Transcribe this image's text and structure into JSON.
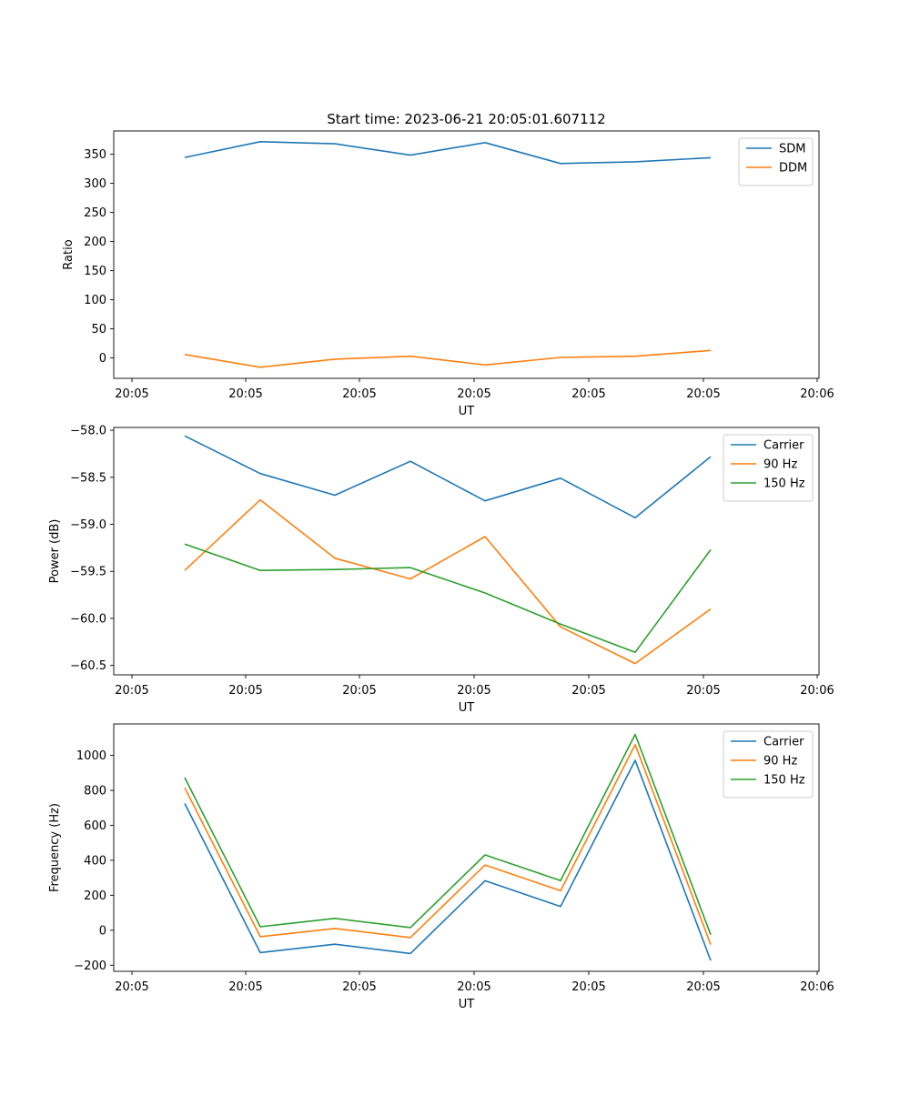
{
  "figure": {
    "title": "Start time: 2023-06-21 20:05:01.607112"
  },
  "colors": {
    "blue": "#1f77b4",
    "orange": "#ff7f0e",
    "green": "#2ca02c"
  },
  "chart_data": [
    {
      "type": "line",
      "title": "Start time: 2023-06-21 20:05:01.607112",
      "xlabel": "UT",
      "ylabel": "Ratio",
      "x": [
        "20:05",
        "20:05",
        "20:05",
        "20:05",
        "20:05",
        "20:05",
        "20:05",
        "20:05"
      ],
      "xticks": [
        "20:05",
        "20:05",
        "20:05",
        "20:05",
        "20:05",
        "20:05",
        "20:06"
      ],
      "ylim": [
        -35,
        390
      ],
      "yticks": [
        0,
        50,
        100,
        150,
        200,
        250,
        300,
        350
      ],
      "legend": "top-right",
      "grid": false,
      "series": [
        {
          "name": "SDM",
          "color": "#1f77b4",
          "values": [
            344.5,
            371.5,
            368,
            348.5,
            370,
            334,
            337,
            344
          ]
        },
        {
          "name": "DDM",
          "color": "#ff7f0e",
          "values": [
            6,
            -16,
            -2,
            3,
            -12,
            1,
            3,
            13
          ]
        }
      ]
    },
    {
      "type": "line",
      "xlabel": "UT",
      "ylabel": "Power (dB)",
      "x": [
        "20:05",
        "20:05",
        "20:05",
        "20:05",
        "20:05",
        "20:05",
        "20:05",
        "20:05"
      ],
      "xticks": [
        "20:05",
        "20:05",
        "20:05",
        "20:05",
        "20:05",
        "20:05",
        "20:06"
      ],
      "ylim": [
        -60.6,
        -57.97
      ],
      "yticks": [
        -58.0,
        -58.5,
        -59.0,
        -59.5,
        -60.0,
        -60.5
      ],
      "ytick_labels": [
        "−58.0",
        "−58.5",
        "−59.0",
        "−59.5",
        "−60.0",
        "−60.5"
      ],
      "legend": "top-right",
      "grid": false,
      "series": [
        {
          "name": "Carrier",
          "color": "#1f77b4",
          "values": [
            -58.06,
            -58.46,
            -58.69,
            -58.33,
            -58.75,
            -58.51,
            -58.93,
            -58.28
          ]
        },
        {
          "name": "90 Hz",
          "color": "#ff7f0e",
          "values": [
            -59.49,
            -58.74,
            -59.36,
            -59.58,
            -59.13,
            -60.09,
            -60.48,
            -59.9
          ]
        },
        {
          "name": "150 Hz",
          "color": "#2ca02c",
          "values": [
            -59.21,
            -59.49,
            -59.48,
            -59.46,
            -59.73,
            -60.06,
            -60.36,
            -59.27
          ]
        }
      ]
    },
    {
      "type": "line",
      "xlabel": "UT",
      "ylabel": "Frequency (Hz)",
      "x": [
        "20:05",
        "20:05",
        "20:05",
        "20:05",
        "20:05",
        "20:05",
        "20:05",
        "20:05"
      ],
      "xticks": [
        "20:05",
        "20:05",
        "20:05",
        "20:05",
        "20:05",
        "20:05",
        "20:06"
      ],
      "ylim": [
        -235,
        1180
      ],
      "yticks": [
        -200,
        0,
        200,
        400,
        600,
        800,
        1000
      ],
      "ytick_labels": [
        "−200",
        "0",
        "200",
        "400",
        "600",
        "800",
        "1000"
      ],
      "legend": "top-right",
      "grid": false,
      "series": [
        {
          "name": "Carrier",
          "color": "#1f77b4",
          "values": [
            725,
            -128,
            -80,
            -133,
            283,
            136,
            972,
            -173
          ]
        },
        {
          "name": "90 Hz",
          "color": "#ff7f0e",
          "values": [
            815,
            -37,
            10,
            -42,
            373,
            226,
            1062,
            -82
          ]
        },
        {
          "name": "150 Hz",
          "color": "#2ca02c",
          "values": [
            873,
            20,
            68,
            15,
            431,
            284,
            1120,
            -26
          ]
        }
      ]
    }
  ]
}
